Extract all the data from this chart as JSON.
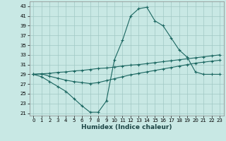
{
  "xlabel": "Humidex (Indice chaleur)",
  "xlim": [
    -0.5,
    23.5
  ],
  "ylim": [
    20.5,
    44
  ],
  "yticks": [
    21,
    23,
    25,
    27,
    29,
    31,
    33,
    35,
    37,
    39,
    41,
    43
  ],
  "xticks": [
    0,
    1,
    2,
    3,
    4,
    5,
    6,
    7,
    8,
    9,
    10,
    11,
    12,
    13,
    14,
    15,
    16,
    17,
    18,
    19,
    20,
    21,
    22,
    23
  ],
  "bg_color": "#c8e8e4",
  "grid_color": "#a0c8c4",
  "line_color": "#1a6660",
  "line1_x": [
    0,
    1,
    2,
    3,
    4,
    5,
    6,
    7,
    8,
    9,
    10,
    11,
    12,
    13,
    14,
    15,
    16,
    17,
    18,
    19,
    20,
    21,
    22,
    23
  ],
  "line1_y": [
    29,
    28.5,
    27.5,
    26.5,
    25.5,
    24.0,
    22.5,
    21.2,
    21.2,
    23.5,
    32.0,
    36.0,
    41.0,
    42.5,
    42.8,
    40.0,
    39.0,
    36.5,
    34.0,
    32.5,
    29.5,
    29.0,
    29.0,
    29.0
  ],
  "line2_x": [
    0,
    1,
    2,
    3,
    4,
    5,
    6,
    7,
    8,
    9,
    10,
    11,
    12,
    13,
    14,
    15,
    16,
    17,
    18,
    19,
    20,
    21,
    22,
    23
  ],
  "line2_y": [
    29.0,
    29.1,
    28.6,
    28.2,
    27.8,
    27.5,
    27.3,
    27.1,
    27.3,
    27.7,
    28.1,
    28.5,
    28.9,
    29.2,
    29.5,
    29.8,
    30.1,
    30.4,
    30.7,
    31.0,
    31.3,
    31.5,
    31.7,
    31.9
  ],
  "line3_x": [
    0,
    1,
    2,
    3,
    4,
    5,
    6,
    7,
    8,
    9,
    10,
    11,
    12,
    13,
    14,
    15,
    16,
    17,
    18,
    19,
    20,
    21,
    22,
    23
  ],
  "line3_y": [
    29.0,
    29.1,
    29.2,
    29.4,
    29.5,
    29.7,
    29.8,
    30.0,
    30.2,
    30.3,
    30.5,
    30.7,
    30.9,
    31.0,
    31.2,
    31.4,
    31.6,
    31.8,
    32.0,
    32.2,
    32.4,
    32.6,
    32.8,
    33.0
  ]
}
